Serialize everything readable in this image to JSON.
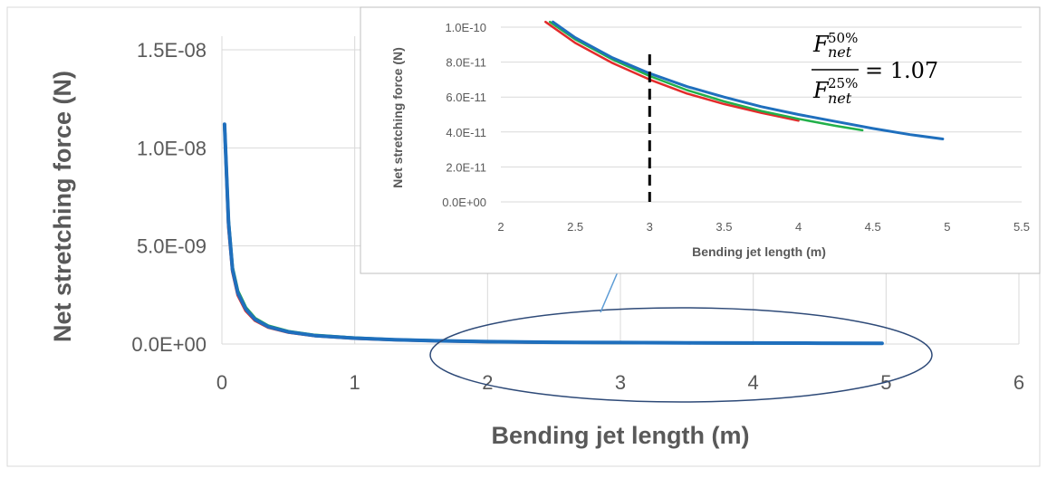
{
  "chart_data": [
    {
      "id": "main",
      "type": "line",
      "title": "",
      "xlabel": "Bending jet length (m)",
      "ylabel": "Net stretching force (N)",
      "xlim": [
        0,
        6
      ],
      "ylim": [
        -2e-09,
        1.6e-08
      ],
      "x_ticks": [
        "0",
        "1",
        "2",
        "3",
        "4",
        "5",
        "6"
      ],
      "y_ticks": [
        "0.0E+00",
        "5.0E-09",
        "1.0E-08",
        "1.5E-08"
      ],
      "grid": "vertical-and-horizontal",
      "series": [
        {
          "color": "#e32b2b",
          "points": [
            [
              0.02,
              1.12e-08
            ],
            [
              0.05,
              6e-09
            ],
            [
              0.08,
              3.7e-09
            ],
            [
              0.12,
              2.5e-09
            ],
            [
              0.18,
              1.7e-09
            ],
            [
              0.25,
              1.2e-09
            ],
            [
              0.35,
              8.5e-10
            ],
            [
              0.5,
              6e-10
            ],
            [
              0.7,
              4.2e-10
            ],
            [
              1.0,
              2.9e-10
            ],
            [
              1.3,
              2.1e-10
            ],
            [
              1.6,
              1.6e-10
            ],
            [
              2.0,
              1.15e-10
            ],
            [
              2.5,
              8.3e-11
            ],
            [
              3.0,
              6.9e-11
            ],
            [
              3.5,
              5.7e-11
            ],
            [
              4.0,
              4.65e-11
            ]
          ]
        },
        {
          "color": "#22b04a",
          "points": [
            [
              0.02,
              1.12e-08
            ],
            [
              0.05,
              6.3e-09
            ],
            [
              0.08,
              3.9e-09
            ],
            [
              0.12,
              2.7e-09
            ],
            [
              0.18,
              1.85e-09
            ],
            [
              0.25,
              1.3e-09
            ],
            [
              0.35,
              9.2e-10
            ],
            [
              0.5,
              6.4e-10
            ],
            [
              0.7,
              4.5e-10
            ],
            [
              1.0,
              3.1e-10
            ],
            [
              1.3,
              2.2e-10
            ],
            [
              1.6,
              1.7e-10
            ],
            [
              2.0,
              1.2e-10
            ],
            [
              2.5,
              8.6e-11
            ],
            [
              3.0,
              7.15e-11
            ],
            [
              3.5,
              5.9e-11
            ],
            [
              4.0,
              4.8e-11
            ],
            [
              4.43,
              4.1e-11
            ]
          ]
        },
        {
          "color": "#1f6fbd",
          "points": [
            [
              0.02,
              1.12e-08
            ],
            [
              0.05,
              6.2e-09
            ],
            [
              0.08,
              3.8e-09
            ],
            [
              0.12,
              2.6e-09
            ],
            [
              0.18,
              1.78e-09
            ],
            [
              0.25,
              1.25e-09
            ],
            [
              0.35,
              8.8e-10
            ],
            [
              0.5,
              6.2e-10
            ],
            [
              0.7,
              4.3e-10
            ],
            [
              1.0,
              3e-10
            ],
            [
              1.3,
              2.15e-10
            ],
            [
              1.6,
              1.65e-10
            ],
            [
              2.0,
              1.18e-10
            ],
            [
              2.5,
              8.7e-11
            ],
            [
              3.0,
              7.3e-11
            ],
            [
              3.5,
              6.05e-11
            ],
            [
              4.0,
              5e-11
            ],
            [
              4.5,
              4.2e-11
            ],
            [
              4.97,
              3.6e-11
            ]
          ]
        }
      ]
    },
    {
      "id": "inset",
      "type": "line",
      "title": "",
      "xlabel": "Bending jet length (m)",
      "ylabel": "Net stretching force (N)",
      "xlim": [
        2,
        5.5
      ],
      "ylim": [
        0,
        1e-10
      ],
      "x_ticks": [
        "2",
        "2.5",
        "3",
        "3.5",
        "4",
        "4.5",
        "5",
        "5.5"
      ],
      "y_ticks": [
        "0.0E+00",
        "2.0E-11",
        "4.0E-11",
        "6.0E-11",
        "8.0E-11",
        "1.0E-10"
      ],
      "grid": "horizontal",
      "marker_line_x": 3,
      "annotation": "= 1.07",
      "series": [
        {
          "color": "#e32b2b",
          "points": [
            [
              2.3,
              1.03e-10
            ],
            [
              2.5,
              9.1e-11
            ],
            [
              2.75,
              7.95e-11
            ],
            [
              3.0,
              7e-11
            ],
            [
              3.25,
              6.2e-11
            ],
            [
              3.5,
              5.6e-11
            ],
            [
              3.75,
              5.1e-11
            ],
            [
              4.0,
              4.65e-11
            ]
          ]
        },
        {
          "color": "#22b04a",
          "points": [
            [
              2.33,
              1.03e-10
            ],
            [
              2.5,
              9.3e-11
            ],
            [
              2.75,
              8.15e-11
            ],
            [
              3.0,
              7.2e-11
            ],
            [
              3.25,
              6.4e-11
            ],
            [
              3.5,
              5.75e-11
            ],
            [
              3.75,
              5.2e-11
            ],
            [
              4.0,
              4.75e-11
            ],
            [
              4.25,
              4.35e-11
            ],
            [
              4.43,
              4.1e-11
            ]
          ]
        },
        {
          "color": "#1f6fbd",
          "points": [
            [
              2.35,
              1.03e-10
            ],
            [
              2.5,
              9.4e-11
            ],
            [
              2.75,
              8.25e-11
            ],
            [
              3.0,
              7.35e-11
            ],
            [
              3.25,
              6.6e-11
            ],
            [
              3.5,
              6e-11
            ],
            [
              3.75,
              5.45e-11
            ],
            [
              4.0,
              5e-11
            ],
            [
              4.25,
              4.6e-11
            ],
            [
              4.5,
              4.2e-11
            ],
            [
              4.75,
              3.85e-11
            ],
            [
              4.97,
              3.6e-11
            ]
          ]
        }
      ]
    }
  ]
}
